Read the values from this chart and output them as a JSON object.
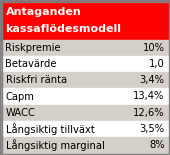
{
  "title_line1": "Antaganden",
  "title_line2": "kassaflödesmodell",
  "title_bg": "#ff0000",
  "title_fg": "#ffffff",
  "rows": [
    [
      "Riskpremie",
      "10%"
    ],
    [
      "Betavärde",
      "1,0"
    ],
    [
      "Riskfri ränta",
      "3,4%"
    ],
    [
      "Capm",
      "13,4%"
    ],
    [
      "WACC",
      "12,6%"
    ],
    [
      "Långsiktig tillväxt",
      "3,5%"
    ],
    [
      "Långsiktig marginal",
      "8%"
    ]
  ],
  "row_colors": [
    "#d4d0c8",
    "#ffffff",
    "#d4d0c8",
    "#ffffff",
    "#d4d0c8",
    "#ffffff",
    "#d4d0c8"
  ],
  "border_color": "#808080",
  "bg_color": "#d4d0c8",
  "text_color": "#000000",
  "font_size": 7.2,
  "title_font_size": 8.0
}
